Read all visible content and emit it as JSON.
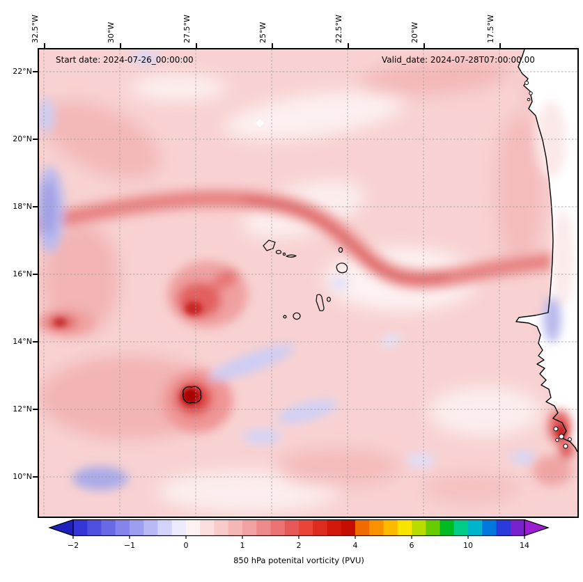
{
  "header": {
    "start_label": "Start date: 2024-07-26_00:00:00",
    "valid_label": "Valid_date: 2024-07-28T07:00:00.00"
  },
  "axes": {
    "top": [
      "32.5°W",
      "30°W",
      "27.5°W",
      "25°W",
      "22.5°W",
      "20°W",
      "17.5°W"
    ],
    "left": [
      "22°N",
      "20°N",
      "18°N",
      "16°N",
      "14°N",
      "12°N",
      "10°N"
    ]
  },
  "colorbar": {
    "label": "850 hPa potenital vorticity (PVU)",
    "ticks": [
      "−2",
      "−1",
      "0",
      "1",
      "2",
      "4",
      "6",
      "10",
      "14"
    ],
    "arrow_left": "#2020c0",
    "arrow_right": "#9b1fd0",
    "cells": [
      "#3535d8",
      "#4f4fdf",
      "#6969e6",
      "#8484ec",
      "#9e9ef1",
      "#b9b9f6",
      "#d3d3fa",
      "#ecebfd",
      "#fdf2f2",
      "#fbdede",
      "#f8caca",
      "#f5b6b6",
      "#f1a1a1",
      "#ed8b8b",
      "#e97272",
      "#e45858",
      "#e94435",
      "#de2c20",
      "#d2170b",
      "#c50d00",
      "#ef6a00",
      "#f89000",
      "#fcb900",
      "#f7e400",
      "#b8dc00",
      "#66cc00",
      "#00bb22",
      "#00cc88",
      "#00b4cc",
      "#0077dd",
      "#2a3bdd",
      "#7722cc"
    ]
  },
  "chart_data": {
    "type": "heatmap",
    "title": "",
    "field": "850 hPa potential vorticity",
    "units": "PVU",
    "start_date": "2024-07-26_00:00:00",
    "valid_date": "2024-07-28T07:00:00.00",
    "x": {
      "label": "longitude",
      "tick_values": [
        -32.5,
        -30,
        -27.5,
        -25,
        -22.5,
        -20,
        -17.5
      ],
      "range": [
        -32.7,
        -15.0
      ]
    },
    "y": {
      "label": "latitude",
      "tick_values": [
        22,
        20,
        18,
        16,
        14,
        12,
        10
      ],
      "range": [
        8.9,
        22.7
      ]
    },
    "colorbar": {
      "tick_values": [
        -2,
        -1,
        0,
        1,
        2,
        4,
        6,
        10,
        14
      ],
      "extend": "both",
      "nonlinear_scale": true
    },
    "grid": "dashed gray at every labeled parallel/meridian",
    "background_value_pvu": 0.5,
    "features": [
      {
        "name": "pv-streamer-arc",
        "value_pvu": 1.5,
        "desc": "band of enhanced PV arcing from (32°W,18.4°N) up to (27.5°W,19.2°N) then southeast to (22.5°W,16.3°N), widening east toward the African coast near 17°N"
      },
      {
        "name": "red-maximum-cluster",
        "lon": -27.6,
        "lat": 15.2,
        "value_pvu": 2.5,
        "desc": "cluster of red maxima with dark core near 27.8°W,15°N"
      },
      {
        "name": "intense-vortex-core",
        "lon": -27.8,
        "lat": 12.4,
        "value_pvu": 4,
        "desc": "small dark-red maximum enclosed by a black contour line"
      },
      {
        "name": "west-edge-maximum",
        "lon": -32.4,
        "lat": 14.7,
        "value_pvu": 2.2
      },
      {
        "name": "negative-strip-west-edge",
        "lon": -32.4,
        "lat": 17.9,
        "value_pvu": -0.8,
        "desc": "elongated meridional strip of negative PV at the western boundary"
      },
      {
        "name": "negative-patch-southwest",
        "lon": -30.9,
        "lat": 10.0,
        "value_pvu": -0.7
      },
      {
        "name": "negative-streaks-central",
        "lon": -26.3,
        "lat": 13.3,
        "value_pvu": -0.4,
        "desc": "thin NE-SW tilted lavender streaks south of the Cape Verde islands"
      },
      {
        "name": "coastal-maxima-guinea-bissau",
        "lon": -15.6,
        "lat": 11.6,
        "value_pvu": 2,
        "desc": "red maxima along the Guinea-Bissau coast"
      },
      {
        "name": "negative-patch-senegal-coast",
        "lon": -16.0,
        "lat": 14.6,
        "value_pvu": -0.5
      },
      {
        "name": "cape-verde-islands",
        "desc": "black island coastlines between 25.5°W-22.7°W and 14.8°N-17.2°N"
      },
      {
        "name": "west-africa-coastline",
        "desc": "coastline from Mauritania (Banc d'Arguin) past Cap-Vert peninsula (Dakar) to the Bijagós islets, land shown white"
      }
    ]
  }
}
